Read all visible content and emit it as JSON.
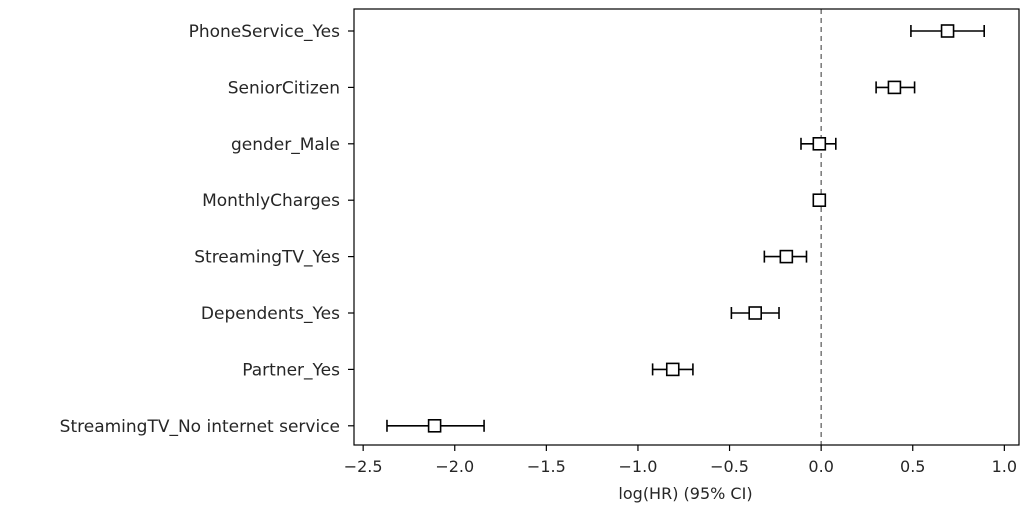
{
  "chart_data": {
    "type": "forest",
    "xlabel": "log(HR) (95% CI)",
    "xlim": [
      -2.55,
      1.08
    ],
    "xticks": [
      -2.5,
      -2.0,
      -1.5,
      -1.0,
      -0.5,
      0.0,
      0.5,
      1.0
    ],
    "xtick_labels": [
      "−2.5",
      "−2.0",
      "−1.5",
      "−1.0",
      "−0.5",
      "0.0",
      "0.5",
      "1.0"
    ],
    "reference_line": 0.0,
    "grid": false,
    "rows": [
      {
        "label": "PhoneService_Yes",
        "coef": 0.69,
        "lower": 0.49,
        "upper": 0.89
      },
      {
        "label": "SeniorCitizen",
        "coef": 0.4,
        "lower": 0.3,
        "upper": 0.51
      },
      {
        "label": "gender_Male",
        "coef": -0.01,
        "lower": -0.11,
        "upper": 0.08
      },
      {
        "label": "MonthlyCharges",
        "coef": -0.01,
        "lower": -0.02,
        "upper": 0.0
      },
      {
        "label": "StreamingTV_Yes",
        "coef": -0.19,
        "lower": -0.31,
        "upper": -0.08
      },
      {
        "label": "Dependents_Yes",
        "coef": -0.36,
        "lower": -0.49,
        "upper": -0.23
      },
      {
        "label": "Partner_Yes",
        "coef": -0.81,
        "lower": -0.92,
        "upper": -0.7
      },
      {
        "label": "StreamingTV_No internet service",
        "coef": -2.11,
        "lower": -2.37,
        "upper": -1.84
      }
    ]
  },
  "colors": {
    "marker_edge": "#000000",
    "marker_fill": "#ffffff",
    "axis": "#000000",
    "text": "#262626",
    "reference_line": "#555555"
  }
}
